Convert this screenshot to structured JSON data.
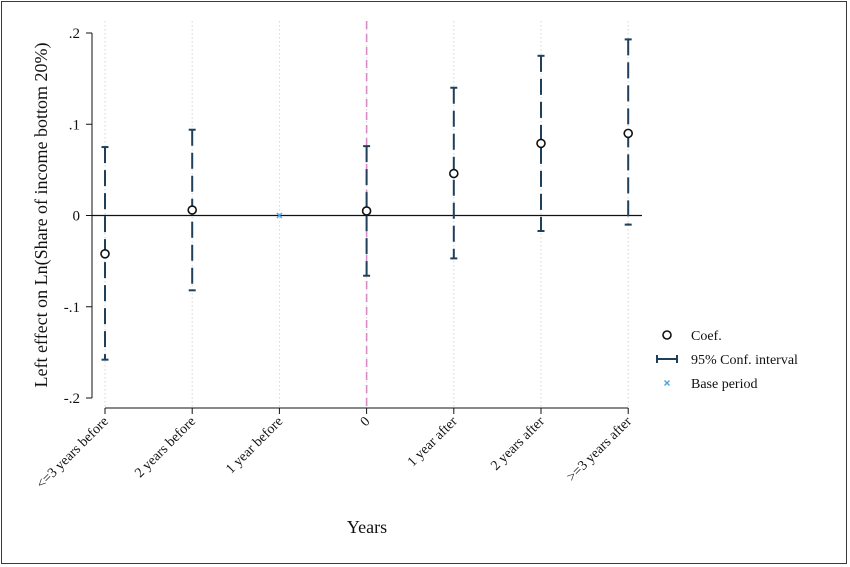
{
  "chart_data": {
    "type": "scatter",
    "subtype": "coefficient-plot-with-confidence-intervals",
    "title": "",
    "xlabel": "Years",
    "ylabel": "Left effect on Ln(Share of income bottom 20%)",
    "categories": [
      "<=3 years before",
      "2 years before",
      "1 year before",
      "0",
      "1 year after",
      "2 years after",
      ">=3 years after"
    ],
    "ylim": [
      -0.2,
      0.2
    ],
    "yticks": [
      0.2,
      0.1,
      0,
      -0.1,
      -0.2
    ],
    "ytick_labels": [
      ".2",
      ".1",
      "0",
      "-.1",
      "-.2"
    ],
    "series": [
      {
        "name": "Coef.",
        "values": [
          -0.042,
          0.006,
          0,
          0.005,
          0.046,
          0.079,
          0.09
        ],
        "ci_lower": [
          -0.158,
          -0.082,
          null,
          -0.066,
          -0.047,
          -0.017,
          -0.01
        ],
        "ci_upper": [
          0.075,
          0.094,
          null,
          0.076,
          0.14,
          0.175,
          0.193
        ]
      }
    ],
    "base_period_index": 2,
    "event_line_index": 3,
    "zero_line": true,
    "grid": "vertical dotted",
    "legend": {
      "placement": "right",
      "entries": [
        {
          "label": "Coef.",
          "symbol": "hollow-circle"
        },
        {
          "label": "95% Conf. interval",
          "symbol": "capped-line"
        },
        {
          "label": "Base period",
          "symbol": "x"
        }
      ]
    },
    "colors": {
      "ci": "#1f3f5b",
      "marker": "#111111",
      "base": "#4aa3df",
      "event_line": "#d98cc4",
      "zero_line": "#111111",
      "grid": "#d6d6d6"
    }
  }
}
